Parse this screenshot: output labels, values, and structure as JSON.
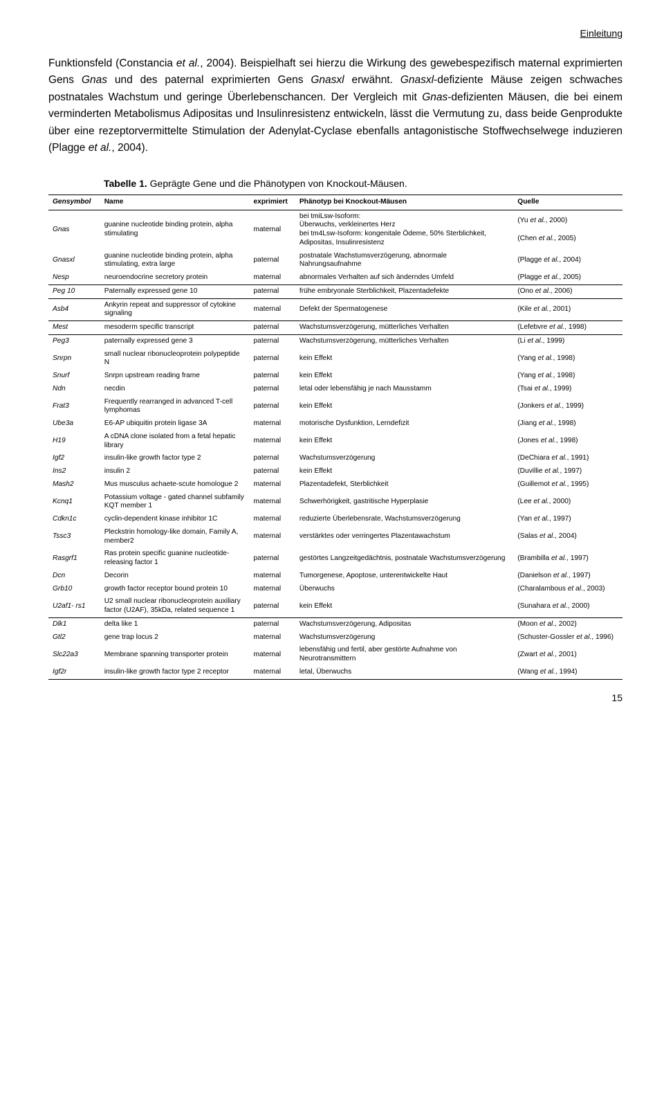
{
  "running_head": "Einleitung",
  "paragraph_html": "Funktionsfeld (Constancia <span class='it'>et al.</span>, 2004). Beispielhaft sei hierzu die Wirkung des gewebespezifisch maternal exprimierten Gens <span class='it'>Gnas</span> und des paternal exprimierten Gens <span class='it'>Gnasxl</span> erwähnt. <span class='it'>Gnasxl</span>-defiziente Mäuse zeigen schwaches postnatales Wachstum und geringe Überlebenschancen. Der Vergleich mit <span class='it'>Gnas</span>-defizienten Mäusen, die bei einem verminderten Metabolismus Adipositas und Insulinresistenz entwickeln, lässt die Vermutung zu, dass beide Genprodukte über eine rezeptorvermittelte Stimulation der Adenylat-Cyclase ebenfalls antagonistische Stoffwechselwege induzieren (Plagge <span class='it'>et al.</span>, 2004).",
  "table_caption_bold": "Tabelle 1.",
  "table_caption_rest": " Geprägte Gene und die Phänotypen von Knockout-Mäusen.",
  "columns": [
    "Gensymbol",
    "Name",
    "exprimiert",
    "Phänotyp bei Knockout-Mäusen",
    "Quelle"
  ],
  "rows": [
    {
      "sym": "Gnas",
      "name": "guanine nucleotide binding protein, alpha stimulating",
      "expr": "maternal",
      "phen": "bei tmiLsw-Isoform:\nÜberwuchs, verkleinertes Herz\nbei tm4Lsw-Isoform: kongenitale Ödeme, 50% Sterblichkeit, Adipositas, Insulinresistenz",
      "src_html": "(Yu <span class='src-i'>et al.</span>, 2000)<br><br>(Chen <span class='src-i'>et al.</span>, 2005)"
    },
    {
      "sym": "Gnasxl",
      "name": "guanine nucleotide binding protein, alpha stimulating, extra large",
      "expr": "paternal",
      "phen": "postnatale Wachstumsverzögerung, abnormale Nahrungsaufnahme",
      "src_html": "(Plagge <span class='src-i'>et al.</span>, 2004)"
    },
    {
      "sym": "Nesp",
      "name": "neuroendocrine secretory protein",
      "expr": "maternal",
      "phen": "abnormales Verhalten auf sich änderndes Umfeld",
      "src_html": "(Plagge <span class='src-i'>et al.</span>, 2005)",
      "sep": true
    },
    {
      "sym": "Peg 10",
      "name": "Paternally expressed gene 10",
      "expr": "paternal",
      "phen": "frühe embryonale Sterblichkeit, Plazentadefekte",
      "src_html": "(Ono <span class='src-i'>et al.</span>, 2006)",
      "sep": true
    },
    {
      "sym": "Asb4",
      "name": "Ankyrin repeat and suppressor of cytokine signaling",
      "expr": "maternal",
      "phen": "Defekt der Spermatogenese",
      "src_html": "(Kile <span class='src-i'>et al.</span>, 2001)",
      "sep": true
    },
    {
      "sym": "Mest",
      "name": "mesoderm specific transcript",
      "expr": "paternal",
      "phen": "Wachstumsverzögerung, mütterliches Verhalten",
      "src_html": "(Lefebvre <span class='src-i'>et al.</span>, 1998)",
      "sep": true
    },
    {
      "sym": "Peg3",
      "name": "paternally expressed gene 3",
      "expr": "paternal",
      "phen": "Wachstumsverzögerung, mütterliches Verhalten",
      "src_html": "(Li <span class='src-i'>et al.</span>, 1999)"
    },
    {
      "sym": "Snrpn",
      "name": "small nuclear ribonucleoprotein polypeptide N",
      "expr": "paternal",
      "phen": "kein Effekt",
      "src_html": "(Yang <span class='src-i'>et al.</span>, 1998)"
    },
    {
      "sym": "Snurf",
      "name": "Snrpn upstream reading frame",
      "expr": "paternal",
      "phen": "kein Effekt",
      "src_html": "(Yang <span class='src-i'>et al.</span>, 1998)"
    },
    {
      "sym": "Ndn",
      "name": "necdin",
      "expr": "paternal",
      "phen": "letal oder lebensfähig je nach Mausstamm",
      "src_html": "(Tsai <span class='src-i'>et al.</span>, 1999)"
    },
    {
      "sym": "Frat3",
      "name": "Frequently rearranged in advanced T-cell lymphomas",
      "expr": "paternal",
      "phen": "kein Effekt",
      "src_html": "(Jonkers <span class='src-i'>et al.</span>, 1999)"
    },
    {
      "sym": "Ube3a",
      "name": "E6-AP ubiquitin protein ligase 3A",
      "expr": "maternal",
      "phen": "motorische Dysfunktion, Lerndefizit",
      "src_html": "(Jiang <span class='src-i'>et al.</span>, 1998)"
    },
    {
      "sym": "H19",
      "name": "A cDNA clone isolated from a fetal hepatic library",
      "expr": "maternal",
      "phen": "kein Effekt",
      "src_html": "(Jones <span class='src-i'>et al.</span>, 1998)"
    },
    {
      "sym": "Igf2",
      "name": "insulin-like growth factor type 2",
      "expr": "paternal",
      "phen": "Wachstumsverzögerung",
      "src_html": "(DeChiara <span class='src-i'>et al.</span>, 1991)"
    },
    {
      "sym": "Ins2",
      "name": "insulin 2",
      "expr": "paternal",
      "phen": "kein Effekt",
      "src_html": "(Duvillie <span class='src-i'>et al.</span>, 1997)"
    },
    {
      "sym": "Mash2",
      "name": "Mus musculus achaete-scute homologue 2",
      "expr": "maternal",
      "phen": "Plazentadefekt, Sterblichkeit",
      "src_html": "(Guillemot <span class='src-i'>et al.</span>, 1995)"
    },
    {
      "sym": "Kcnq1",
      "name": "Potassium voltage - gated channel subfamily KQT member 1",
      "expr": "maternal",
      "phen": "Schwerhörigkeit, gastritische Hyperplasie",
      "src_html": "(Lee <span class='src-i'>et al.</span>, 2000)"
    },
    {
      "sym": "Cdkn1c",
      "name": "cyclin-dependent kinase inhibitor 1C",
      "expr": "maternal",
      "phen": "reduzierte Überlebensrate, Wachstumsverzögerung",
      "src_html": "(Yan <span class='src-i'>et al.</span>, 1997)"
    },
    {
      "sym": "Tssc3",
      "name": "Pleckstrin homology-like domain, Family A, member2",
      "expr": "maternal",
      "phen": "verstärktes oder verringertes Plazentawachstum",
      "src_html": "(Salas <span class='src-i'>et al.</span>, 2004)"
    },
    {
      "sym": "Rasgrf1",
      "name": "Ras protein specific guanine nucleotide-releasing factor 1",
      "expr": "paternal",
      "phen": "gestörtes Langzeitgedächtnis, postnatale Wachstumsverzögerung",
      "src_html": "(Brambilla <span class='src-i'>et al.</span>, 1997)"
    },
    {
      "sym": "Dcn",
      "name": "Decorin",
      "expr": "maternal",
      "phen": "Tumorgenese, Apoptose, unterentwickelte Haut",
      "src_html": "(Danielson <span class='src-i'>et al.</span>, 1997)"
    },
    {
      "sym": "Grb10",
      "name": "growth factor receptor bound protein 10",
      "expr": "maternal",
      "phen": "Überwuchs",
      "src_html": "(Charalambous <span class='src-i'>et al.</span>, 2003)"
    },
    {
      "sym": "U2af1- rs1",
      "name": "U2 small nuclear ribonucleoprotein auxiliary factor (U2AF), 35kDa, related sequence 1",
      "expr": "paternal",
      "phen": "kein Effekt",
      "src_html": "(Sunahara <span class='src-i'>et al.</span>, 2000)",
      "sep": true
    },
    {
      "sym": "Dlk1",
      "name": "delta like 1",
      "expr": "paternal",
      "phen": "Wachstumsverzögerung, Adipositas",
      "src_html": "(Moon <span class='src-i'>et al.</span>, 2002)"
    },
    {
      "sym": "Gtl2",
      "name": "gene trap locus 2",
      "expr": "maternal",
      "phen": "Wachstumsverzögerung",
      "src_html": "(Schuster-Gossler <span class='src-i'>et al.</span>, 1996)"
    },
    {
      "sym": "Slc22a3",
      "name": "Membrane spanning transporter protein",
      "expr": "maternal",
      "phen": "lebensfähig und fertil, aber gestörte Aufnahme von Neurotransmittern",
      "src_html": "(Zwart <span class='src-i'>et al.</span>, 2001)"
    },
    {
      "sym": "Igf2r",
      "name": "insulin-like growth factor type 2 receptor",
      "expr": "maternal",
      "phen": "letal, Überwuchs",
      "src_html": "(Wang <span class='src-i'>et al.</span>, 1994)",
      "last": true
    }
  ],
  "page_number": "15"
}
